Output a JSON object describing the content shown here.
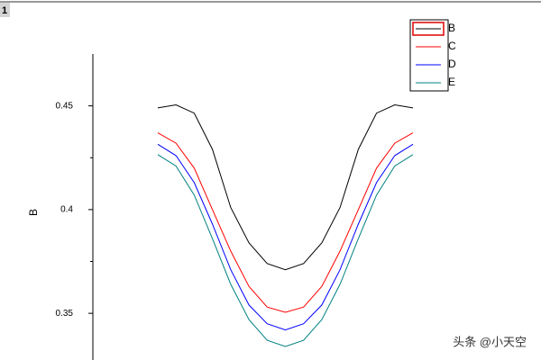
{
  "chart_data": {
    "type": "line",
    "layer_label": "1",
    "y_label": "B",
    "categories": [
      null,
      null,
      null,
      null,
      null,
      null,
      null,
      null,
      null,
      null,
      null,
      null,
      null,
      null,
      null
    ],
    "series": [
      {
        "name": "B",
        "color": "#000000",
        "values": [
          0.449,
          0.4505,
          0.4465,
          0.429,
          0.401,
          0.384,
          0.374,
          0.371,
          0.374,
          0.384,
          0.401,
          0.429,
          0.4465,
          0.4505,
          0.449
        ]
      },
      {
        "name": "C",
        "color": "#ff0000",
        "values": [
          0.437,
          0.432,
          0.42,
          0.4,
          0.38,
          0.363,
          0.353,
          0.3505,
          0.353,
          0.363,
          0.38,
          0.4,
          0.42,
          0.432,
          0.437
        ]
      },
      {
        "name": "D",
        "color": "#0000ff",
        "values": [
          0.4315,
          0.426,
          0.413,
          0.393,
          0.371,
          0.354,
          0.345,
          0.342,
          0.345,
          0.354,
          0.371,
          0.393,
          0.413,
          0.426,
          0.4315
        ]
      },
      {
        "name": "E",
        "color": "#008080",
        "values": [
          0.4265,
          0.421,
          0.407,
          0.386,
          0.364,
          0.347,
          0.337,
          0.334,
          0.337,
          0.347,
          0.364,
          0.386,
          0.407,
          0.421,
          0.4265
        ]
      }
    ],
    "ylim": [
      0.3275,
      0.475
    ],
    "yticks": [
      0.35,
      0.4,
      0.45
    ],
    "minor_yticks": [
      0.375,
      0.425
    ],
    "legend_position": "upper right",
    "watermark": "头条 @小天空"
  }
}
